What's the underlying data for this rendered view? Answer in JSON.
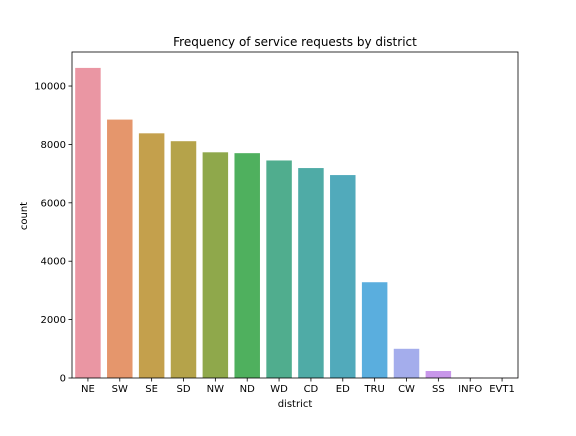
{
  "chart_data": {
    "type": "bar",
    "title": "Frequency of service requests by district",
    "xlabel": "district",
    "ylabel": "count",
    "categories": [
      "NE",
      "SW",
      "SE",
      "SD",
      "NW",
      "ND",
      "WD",
      "CD",
      "ED",
      "TRU",
      "CW",
      "SS",
      "INFO",
      "EVT1"
    ],
    "values": [
      10620,
      8850,
      8380,
      8110,
      7730,
      7700,
      7450,
      7190,
      6950,
      3280,
      1000,
      240,
      6,
      3
    ],
    "colors": [
      "#ea96a3",
      "#e5966c",
      "#c4a04c",
      "#b5a34a",
      "#8fa84b",
      "#4fb05e",
      "#50ad8e",
      "#4faba6",
      "#51aabb",
      "#5aaede",
      "#a4adec",
      "#c897ea",
      "#e78bd9",
      "#e795c0"
    ],
    "ylim": [
      0,
      11165
    ],
    "yticks": [
      0,
      2000,
      4000,
      6000,
      8000,
      10000
    ],
    "grid": false,
    "legend": "none"
  }
}
